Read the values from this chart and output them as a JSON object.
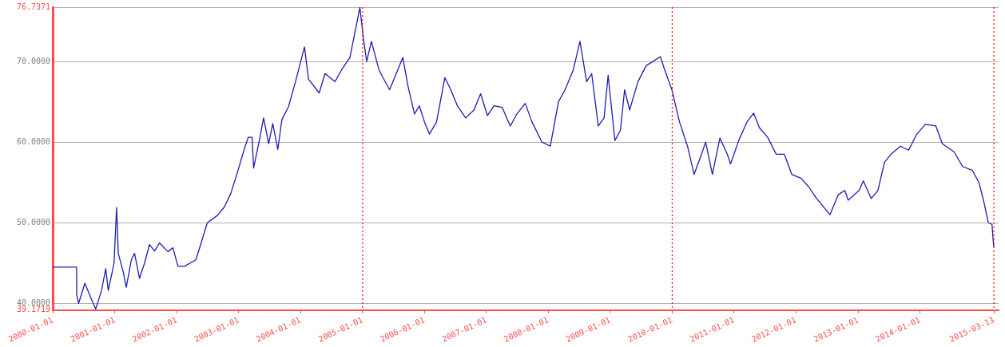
{
  "chart_data": {
    "type": "line",
    "legend": false,
    "grid": "y",
    "marker": "none",
    "line_style": "solid",
    "xlim": [
      "2000-01-01",
      "2015-04-10"
    ],
    "xticks": [
      "2000-01-01",
      "2001-01-01",
      "2002-01-01",
      "2003-01-01",
      "2004-01-01",
      "2005-01-01",
      "2006-01-01",
      "2007-01-01",
      "2008-01-01",
      "2009-01-01",
      "2010-01-01",
      "2011-01-01",
      "2012-01-01",
      "2013-01-01",
      "2014-01-01",
      "2015-03-13"
    ],
    "ylim": [
      39.1719,
      76.7371
    ],
    "yticks": [
      {
        "value": 39.1719,
        "label": "39.1719"
      },
      {
        "value": 40,
        "label": "40.0000"
      },
      {
        "value": 50,
        "label": "50.0000"
      },
      {
        "value": 60,
        "label": "60.0000"
      },
      {
        "value": 70,
        "label": "70.0000"
      },
      {
        "value": 76.7371,
        "label": "76.7371"
      }
    ],
    "ref_lines": [
      {
        "axis": "x",
        "value": "2005-01-01",
        "color": "#ff0000",
        "line_style": "dotted"
      },
      {
        "axis": "x",
        "value": "2010-01-01",
        "color": "#ff0000",
        "line_style": "dotted"
      },
      {
        "axis": "x",
        "value": "2015-03-13",
        "color": "#ff0000",
        "line_style": "dotted"
      }
    ],
    "series": [
      {
        "color": "#1c1cb4",
        "x": [
          "2000-01-01",
          "2000-05-20",
          "2000-05-21",
          "2000-06-01",
          "2000-07-08",
          "2000-08-12",
          "2000-09-10",
          "2000-10-14",
          "2000-11-08",
          "2000-11-23",
          "2000-12-27",
          "2001-01-11",
          "2001-01-21",
          "2001-02-19",
          "2001-03-09",
          "2001-04-08",
          "2001-04-27",
          "2001-05-26",
          "2001-06-25",
          "2001-07-24",
          "2001-08-23",
          "2001-09-21",
          "2001-11-10",
          "2001-12-09",
          "2002-01-08",
          "2002-02-15",
          "2002-04-23",
          "2002-05-22",
          "2002-06-30",
          "2002-08-28",
          "2002-10-07",
          "2002-11-15",
          "2002-12-24",
          "2003-01-28",
          "2003-02-26",
          "2003-03-21",
          "2003-03-30",
          "2003-04-29",
          "2003-05-28",
          "2003-06-27",
          "2003-07-21",
          "2003-08-20",
          "2003-09-13",
          "2003-10-22",
          "2003-12-01",
          "2004-01-24",
          "2004-02-17",
          "2004-04-20",
          "2004-05-24",
          "2004-07-22",
          "2004-08-31",
          "2004-10-18",
          "2004-12-16",
          "2005-01-05",
          "2005-01-25",
          "2005-02-22",
          "2005-04-07",
          "2005-05-01",
          "2005-06-09",
          "2005-07-28",
          "2005-08-26",
          "2005-09-25",
          "2005-11-03",
          "2005-12-02",
          "2006-01-01",
          "2006-01-30",
          "2006-03-13",
          "2006-05-01",
          "2006-06-05",
          "2006-07-14",
          "2006-09-01",
          "2006-10-20",
          "2006-11-28",
          "2007-01-07",
          "2007-02-15",
          "2007-04-04",
          "2007-05-22",
          "2007-06-30",
          "2007-08-18",
          "2007-09-27",
          "2007-11-25",
          "2008-01-13",
          "2008-03-01",
          "2008-04-09",
          "2008-05-28",
          "2008-07-06",
          "2008-08-14",
          "2008-09-13",
          "2008-10-22",
          "2008-11-25",
          "2008-12-19",
          "2009-01-28",
          "2009-03-02",
          "2009-03-26",
          "2009-04-25",
          "2009-06-13",
          "2009-08-01",
          "2009-09-09",
          "2009-10-23",
          "2009-11-17",
          "2009-12-30",
          "2010-02-13",
          "2010-04-01",
          "2010-05-10",
          "2010-06-23",
          "2010-07-17",
          "2010-08-26",
          "2010-10-09",
          "2010-11-22",
          "2010-12-11",
          "2011-01-30",
          "2011-03-18",
          "2011-04-26",
          "2011-05-30",
          "2011-07-18",
          "2011-09-06",
          "2011-10-24",
          "2011-12-07",
          "2012-02-01",
          "2012-03-14",
          "2012-05-02",
          "2012-07-19",
          "2012-09-07",
          "2012-10-15",
          "2012-11-04",
          "2013-01-07",
          "2013-02-01",
          "2013-03-20",
          "2013-04-28",
          "2013-06-06",
          "2013-07-15",
          "2013-09-08",
          "2013-10-26",
          "2013-12-14",
          "2014-02-02",
          "2014-04-05",
          "2014-05-13",
          "2014-07-21",
          "2014-09-09",
          "2014-11-06",
          "2014-12-15",
          "2015-01-14",
          "2015-02-08",
          "2015-03-02",
          "2015-03-12"
        ],
        "values": [
          44.5,
          44.5,
          41,
          40,
          42.5,
          40.7,
          39.3,
          41.6,
          44.3,
          41.6,
          45,
          51.9,
          46.2,
          43.9,
          42,
          45.4,
          46.2,
          43.1,
          45,
          47.3,
          46.5,
          47.5,
          46.4,
          46.9,
          44.6,
          44.6,
          45.4,
          47.3,
          50,
          50.9,
          51.9,
          53.6,
          56.2,
          58.7,
          60.6,
          60.6,
          56.8,
          59.8,
          63,
          59.8,
          62.3,
          59.1,
          62.8,
          64.4,
          67.4,
          71.8,
          67.8,
          66.1,
          68.5,
          67.5,
          69,
          70.5,
          76.7,
          73,
          70,
          72.5,
          69,
          68,
          66.5,
          69,
          70.5,
          67,
          63.5,
          64.5,
          62.5,
          61,
          62.5,
          68,
          66.5,
          64.5,
          63,
          64,
          66,
          63.3,
          64.5,
          64.3,
          62,
          63.5,
          64.8,
          62.5,
          60,
          59.5,
          65,
          66.5,
          69,
          72.5,
          67.5,
          68.5,
          62,
          63,
          68.3,
          60.2,
          61.5,
          66.5,
          64,
          67.5,
          69.5,
          70,
          70.6,
          69,
          66.5,
          62.5,
          59.5,
          56,
          58.5,
          60,
          56,
          60.5,
          58.5,
          57.3,
          60.3,
          62.5,
          63.6,
          61.8,
          60.6,
          58.5,
          58.5,
          56,
          55.5,
          54.5,
          53,
          51,
          53.5,
          54,
          52.8,
          54,
          55.2,
          53,
          54,
          57.5,
          58.5,
          59.5,
          59,
          61,
          62.2,
          62,
          59.8,
          58.8,
          57,
          56.5,
          55,
          52.5,
          50,
          49.8,
          47
        ]
      }
    ]
  }
}
